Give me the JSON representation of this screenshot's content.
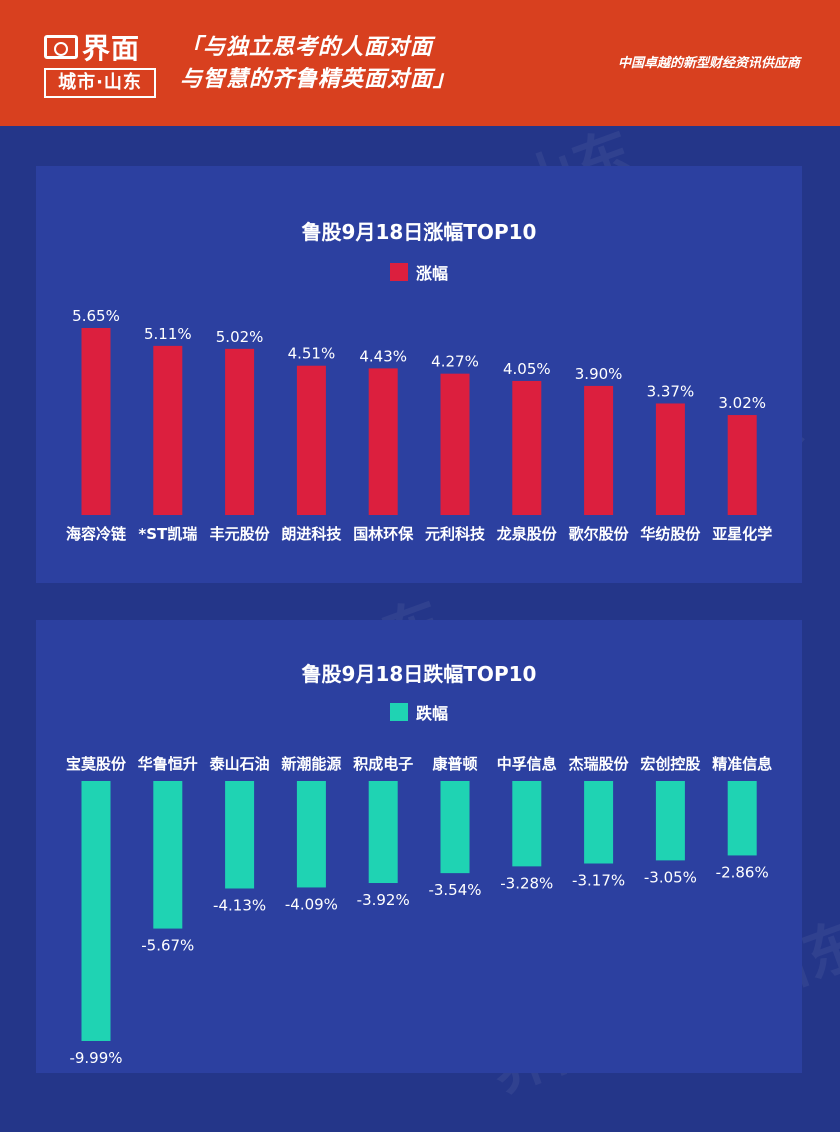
{
  "header": {
    "logo_name": "界面",
    "logo_city": "城市·山东",
    "slogan_line1": "「与独立思考的人面对面",
    "slogan_line2": "与智慧的齐鲁精英面对面」",
    "tagline": "中国卓越的新型财经资讯供应商"
  },
  "colors": {
    "header_bg": "#d8401f",
    "page_bg": "#243689",
    "panel_bg": "#2c40a0",
    "gain": "#dc1f3e",
    "loss": "#1fd3b3"
  },
  "chart_data": [
    {
      "type": "bar",
      "title": "鲁股9月18日涨幅TOP10",
      "series": [
        {
          "name": "涨幅",
          "values": [
            5.65,
            5.11,
            5.02,
            4.51,
            4.43,
            4.27,
            4.05,
            3.9,
            3.37,
            3.02
          ],
          "labels": [
            "5.65%",
            "5.11%",
            "5.02%",
            "4.51%",
            "4.43%",
            "4.27%",
            "4.05%",
            "3.90%",
            "3.37%",
            "3.02%"
          ]
        }
      ],
      "categories": [
        "海容冷链",
        "*ST凯瑞",
        "丰元股份",
        "朗进科技",
        "国林环保",
        "元利科技",
        "龙泉股份",
        "歌尔股份",
        "华纺股份",
        "亚星化学"
      ],
      "xlabel": "",
      "ylabel": "",
      "ylim": [
        0,
        5.65
      ],
      "grid": false,
      "legend": "top-center"
    },
    {
      "type": "bar",
      "title": "鲁股9月18日跌幅TOP10",
      "series": [
        {
          "name": "跌幅",
          "values": [
            -9.99,
            -5.67,
            -4.13,
            -4.09,
            -3.92,
            -3.54,
            -3.28,
            -3.17,
            -3.05,
            -2.86
          ],
          "labels": [
            "-9.99%",
            "-5.67%",
            "-4.13%",
            "-4.09%",
            "-3.92%",
            "-3.54%",
            "-3.28%",
            "-3.17%",
            "-3.05%",
            "-2.86%"
          ]
        }
      ],
      "categories": [
        "宝莫股份",
        "华鲁恒升",
        "泰山石油",
        "新潮能源",
        "积成电子",
        "康普顿",
        "中孚信息",
        "杰瑞股份",
        "宏创控股",
        "精准信息"
      ],
      "xlabel": "",
      "ylabel": "",
      "ylim": [
        -9.99,
        0
      ],
      "grid": false,
      "legend": "top-center"
    }
  ]
}
